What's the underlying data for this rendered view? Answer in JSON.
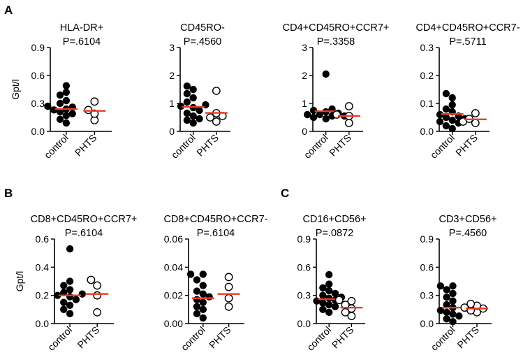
{
  "panel_letters": [
    "A",
    "B",
    "C"
  ],
  "y_axis_label": "Gpt/l",
  "colors": {
    "mean": "#ee3b24",
    "control": "#000000",
    "phts_edge": "#000000",
    "phts_fill": "#ffffff"
  },
  "chart_data": [
    {
      "type": "scatter",
      "panel": "A",
      "title": "HLA-DR+",
      "pvalue": "P=.6104",
      "ylabel": "Gpt/l",
      "ylim": [
        0,
        0.9
      ],
      "yticks": [
        0.0,
        0.3,
        0.6,
        0.9
      ],
      "ytick_labels": [
        "0.0",
        "0.3",
        "0.6",
        "0.9"
      ],
      "categories": [
        "control",
        "PHTS"
      ],
      "series": [
        {
          "name": "control",
          "marker": "filled",
          "values": [
            0.09,
            0.13,
            0.17,
            0.19,
            0.21,
            0.23,
            0.24,
            0.26,
            0.27,
            0.3,
            0.33,
            0.39,
            0.42,
            0.49
          ],
          "mean": 0.24
        },
        {
          "name": "PHTS",
          "marker": "open",
          "values": [
            0.12,
            0.19,
            0.23,
            0.32
          ],
          "mean": 0.22
        }
      ]
    },
    {
      "type": "scatter",
      "panel": "A",
      "title": "CD45RO-",
      "pvalue": "P=.4560",
      "ylabel": "",
      "ylim": [
        0,
        3
      ],
      "yticks": [
        0,
        1,
        2,
        3
      ],
      "ytick_labels": [
        "0",
        "1",
        "2",
        "3"
      ],
      "categories": [
        "control",
        "PHTS"
      ],
      "series": [
        {
          "name": "control",
          "marker": "filled",
          "values": [
            0.3,
            0.4,
            0.45,
            0.55,
            0.65,
            0.75,
            0.85,
            0.9,
            0.95,
            1.05,
            1.2,
            1.35,
            1.5,
            1.62
          ],
          "mean": 0.88
        },
        {
          "name": "PHTS",
          "marker": "open",
          "values": [
            0.35,
            0.5,
            0.55,
            0.65,
            1.45
          ],
          "mean": 0.66
        }
      ]
    },
    {
      "type": "scatter",
      "panel": "A",
      "title": "CD4+CD45RO+CCR7+",
      "pvalue": "P=.3358",
      "ylabel": "",
      "ylim": [
        0,
        3
      ],
      "yticks": [
        0,
        1,
        2,
        3
      ],
      "ytick_labels": [
        "0",
        "1",
        "2",
        "3"
      ],
      "categories": [
        "control",
        "PHTS"
      ],
      "series": [
        {
          "name": "control",
          "marker": "filled",
          "values": [
            0.45,
            0.5,
            0.55,
            0.55,
            0.6,
            0.6,
            0.65,
            0.7,
            0.75,
            0.8,
            2.05
          ],
          "mean": 0.72
        },
        {
          "name": "PHTS",
          "marker": "open",
          "values": [
            0.3,
            0.55,
            0.6,
            0.9
          ],
          "mean": 0.55
        }
      ]
    },
    {
      "type": "scatter",
      "panel": "A",
      "title": "CD4+CD45RO+CCR7-",
      "pvalue": "P=.5711",
      "ylabel": "",
      "ylim": [
        0,
        0.3
      ],
      "yticks": [
        0.0,
        0.1,
        0.2,
        0.3
      ],
      "ytick_labels": [
        "0.0",
        "0.1",
        "0.2",
        "0.3"
      ],
      "categories": [
        "control",
        "PHTS"
      ],
      "series": [
        {
          "name": "control",
          "marker": "filled",
          "values": [
            0.01,
            0.02,
            0.03,
            0.035,
            0.04,
            0.045,
            0.05,
            0.055,
            0.06,
            0.07,
            0.08,
            0.095,
            0.12,
            0.135
          ],
          "mean": 0.062
        },
        {
          "name": "PHTS",
          "marker": "open",
          "values": [
            0.03,
            0.035,
            0.045,
            0.065
          ],
          "mean": 0.043
        }
      ]
    },
    {
      "type": "scatter",
      "panel": "B",
      "title": "CD8+CD45RO+CCR7+",
      "pvalue": "P=.6104",
      "ylabel": "Gpt/l",
      "ylim": [
        0,
        0.6
      ],
      "yticks": [
        0.0,
        0.2,
        0.4,
        0.6
      ],
      "ytick_labels": [
        "0.0",
        "0.2",
        "0.4",
        "0.6"
      ],
      "categories": [
        "control",
        "PHTS"
      ],
      "series": [
        {
          "name": "control",
          "marker": "filled",
          "values": [
            0.07,
            0.1,
            0.13,
            0.15,
            0.17,
            0.19,
            0.2,
            0.21,
            0.22,
            0.24,
            0.27,
            0.3,
            0.53
          ],
          "mean": 0.2
        },
        {
          "name": "PHTS",
          "marker": "open",
          "values": [
            0.08,
            0.2,
            0.27,
            0.31
          ],
          "mean": 0.21
        }
      ]
    },
    {
      "type": "scatter",
      "panel": "B",
      "title": "CD8+CD45RO+CCR7-",
      "pvalue": "P=.6104",
      "ylabel": "",
      "ylim": [
        0,
        0.06
      ],
      "yticks": [
        0.0,
        0.02,
        0.04,
        0.06
      ],
      "ytick_labels": [
        "0.00",
        "0.02",
        "0.04",
        "0.06"
      ],
      "categories": [
        "control",
        "PHTS"
      ],
      "series": [
        {
          "name": "control",
          "marker": "filled",
          "values": [
            0.004,
            0.007,
            0.01,
            0.012,
            0.015,
            0.017,
            0.019,
            0.021,
            0.023,
            0.027,
            0.031,
            0.035,
            0.035
          ],
          "mean": 0.018
        },
        {
          "name": "PHTS",
          "marker": "open",
          "values": [
            0.012,
            0.018,
            0.026,
            0.033
          ],
          "mean": 0.021
        }
      ]
    },
    {
      "type": "scatter",
      "panel": "C",
      "title": "CD16+CD56+",
      "pvalue": "P=.0872",
      "ylabel": "",
      "ylim": [
        0,
        0.9
      ],
      "yticks": [
        0.0,
        0.3,
        0.6,
        0.9
      ],
      "ytick_labels": [
        "0.0",
        "0.3",
        "0.6",
        "0.9"
      ],
      "categories": [
        "control",
        "PHTS"
      ],
      "series": [
        {
          "name": "control",
          "marker": "filled",
          "values": [
            0.12,
            0.15,
            0.18,
            0.2,
            0.22,
            0.24,
            0.25,
            0.27,
            0.28,
            0.3,
            0.32,
            0.35,
            0.38,
            0.42,
            0.52
          ],
          "mean": 0.26
        },
        {
          "name": "PHTS",
          "marker": "open",
          "values": [
            0.08,
            0.12,
            0.16,
            0.2,
            0.24,
            0.25
          ],
          "mean": 0.17
        }
      ]
    },
    {
      "type": "scatter",
      "panel": "C",
      "title": "CD3+CD56+",
      "pvalue": "P=.4560",
      "ylabel": "",
      "ylim": [
        0,
        0.9
      ],
      "yticks": [
        0.0,
        0.3,
        0.6,
        0.9
      ],
      "ytick_labels": [
        "0.0",
        "0.3",
        "0.6",
        "0.9"
      ],
      "categories": [
        "control",
        "PHTS"
      ],
      "series": [
        {
          "name": "control",
          "marker": "filled",
          "values": [
            0.02,
            0.05,
            0.08,
            0.1,
            0.12,
            0.14,
            0.17,
            0.2,
            0.24,
            0.28,
            0.32,
            0.36,
            0.4,
            0.4
          ],
          "mean": 0.17
        },
        {
          "name": "PHTS",
          "marker": "open",
          "values": [
            0.12,
            0.14,
            0.16,
            0.17,
            0.19,
            0.21
          ],
          "mean": 0.16
        }
      ]
    }
  ]
}
